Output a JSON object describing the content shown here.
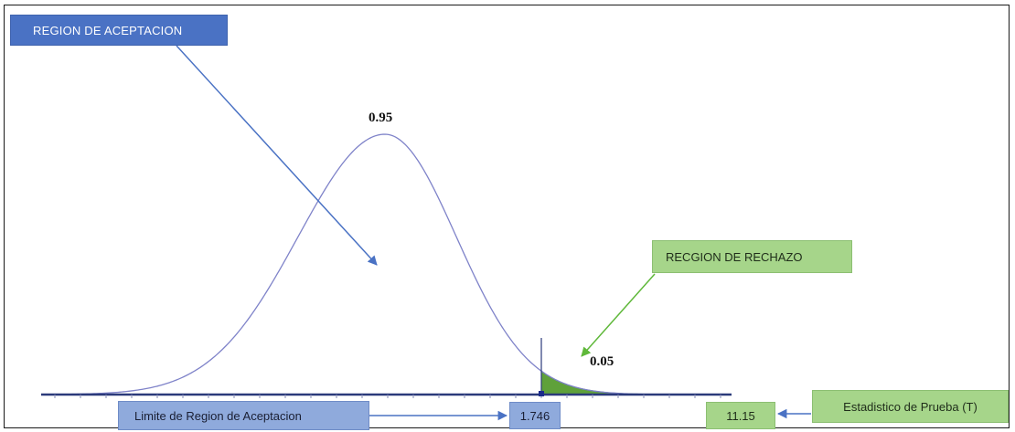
{
  "labels": {
    "acceptance_region": "REGION DE ACEPTACION",
    "rejection_region": "RECGION DE RECHAZO",
    "acceptance_limit": "Limite de Region de Aceptacion",
    "critical_value": "1.746",
    "test_statistic_label": "Estadistico de Prueba (T)",
    "test_statistic_value": "11.15",
    "acceptance_probability": "0.95",
    "rejection_probability": "0.05"
  },
  "colors": {
    "curve": "#7f83c9",
    "rejection_fill": "#5fa13a",
    "rejection_edge": "#2f6b1a",
    "axis": "#2b3a7a",
    "arrow_blue": "#4a72c4",
    "arrow_green": "#5fb83a",
    "box_blue_dark": "#4a72c4",
    "box_blue_light": "#8faadc",
    "box_green": "#a6d58a"
  }
}
